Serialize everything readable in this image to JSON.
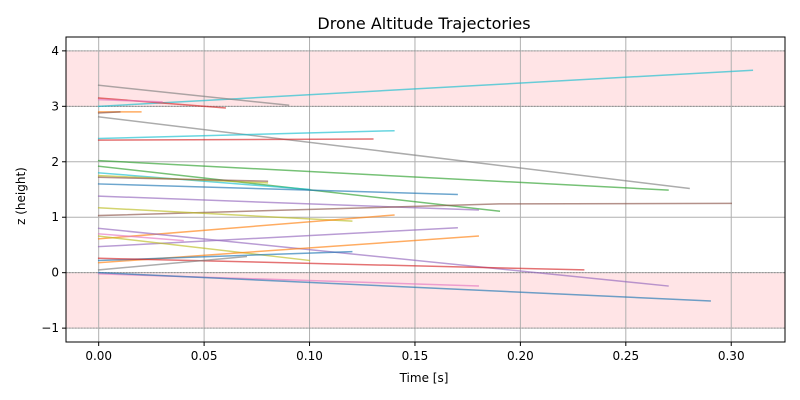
{
  "chart_data": {
    "type": "line",
    "title": "Drone Altitude Trajectories",
    "xlabel": "Time [s]",
    "ylabel": "z (height)",
    "xlim": [
      -0.0155,
      0.3255
    ],
    "ylim": [
      -1.25,
      4.25
    ],
    "x_ticks": [
      0.0,
      0.05,
      0.1,
      0.15,
      0.2,
      0.25,
      0.3
    ],
    "x_tick_labels": [
      "0.00",
      "0.05",
      "0.10",
      "0.15",
      "0.20",
      "0.25",
      "0.30"
    ],
    "y_ticks": [
      -1,
      0,
      1,
      2,
      3,
      4
    ],
    "y_tick_labels": [
      "−1",
      "0",
      "1",
      "2",
      "3",
      "4"
    ],
    "grid": true,
    "legend": "none",
    "shaded_bands": [
      {
        "y_from": 3,
        "y_to": 4,
        "color": "#ffe4e6"
      },
      {
        "y_from": -1,
        "y_to": 0,
        "color": "#ffe4e6"
      }
    ],
    "band_boundary_lines": [
      -1,
      0,
      3,
      4
    ],
    "series": [
      {
        "color": "#17becf",
        "points": [
          [
            0.0,
            3.0
          ],
          [
            0.31,
            3.65
          ]
        ]
      },
      {
        "color": "#7f7f7f",
        "points": [
          [
            0.0,
            3.38
          ],
          [
            0.09,
            3.02
          ]
        ]
      },
      {
        "color": "#d62728",
        "points": [
          [
            0.0,
            3.15
          ],
          [
            0.06,
            2.97
          ]
        ]
      },
      {
        "color": "#e377c2",
        "points": [
          [
            0.0,
            3.12
          ],
          [
            0.03,
            3.08
          ]
        ]
      },
      {
        "color": "#ff7f0e",
        "points": [
          [
            0.0,
            2.9
          ],
          [
            0.02,
            2.9
          ]
        ]
      },
      {
        "color": "#8c564b",
        "points": [
          [
            0.0,
            2.88
          ],
          [
            0.01,
            2.9
          ]
        ]
      },
      {
        "color": "#7f7f7f",
        "points": [
          [
            0.0,
            2.81
          ],
          [
            0.28,
            1.52
          ]
        ]
      },
      {
        "color": "#17becf",
        "points": [
          [
            0.0,
            2.42
          ],
          [
            0.14,
            2.56
          ]
        ]
      },
      {
        "color": "#d62728",
        "points": [
          [
            0.0,
            2.39
          ],
          [
            0.13,
            2.41
          ]
        ]
      },
      {
        "color": "#2ca02c",
        "points": [
          [
            0.0,
            2.02
          ],
          [
            0.27,
            1.49
          ]
        ]
      },
      {
        "color": "#2ca02c",
        "points": [
          [
            0.0,
            1.92
          ],
          [
            0.19,
            1.11
          ]
        ]
      },
      {
        "color": "#17becf",
        "points": [
          [
            0.0,
            1.8
          ],
          [
            0.1,
            1.5
          ]
        ]
      },
      {
        "color": "#bcbd22",
        "points": [
          [
            0.0,
            1.75
          ],
          [
            0.08,
            1.62
          ]
        ]
      },
      {
        "color": "#8c564b",
        "points": [
          [
            0.0,
            1.72
          ],
          [
            0.08,
            1.65
          ]
        ]
      },
      {
        "color": "#1f77b4",
        "points": [
          [
            0.0,
            1.6
          ],
          [
            0.17,
            1.41
          ]
        ]
      },
      {
        "color": "#9467bd",
        "points": [
          [
            0.0,
            1.38
          ],
          [
            0.18,
            1.13
          ]
        ]
      },
      {
        "color": "#8c564b",
        "points": [
          [
            0.0,
            1.03
          ],
          [
            0.19,
            1.24
          ],
          [
            0.3,
            1.25
          ]
        ]
      },
      {
        "color": "#bcbd22",
        "points": [
          [
            0.0,
            1.17
          ],
          [
            0.12,
            0.93
          ]
        ]
      },
      {
        "color": "#ff7f0e",
        "points": [
          [
            0.0,
            0.61
          ],
          [
            0.14,
            1.04
          ]
        ]
      },
      {
        "color": "#9467bd",
        "points": [
          [
            0.0,
            0.8
          ],
          [
            0.27,
            -0.24
          ]
        ]
      },
      {
        "color": "#9467bd",
        "points": [
          [
            0.0,
            0.47
          ],
          [
            0.17,
            0.81
          ]
        ]
      },
      {
        "color": "#e377c2",
        "points": [
          [
            0.0,
            0.7
          ],
          [
            0.04,
            0.58
          ]
        ]
      },
      {
        "color": "#bcbd22",
        "points": [
          [
            0.0,
            0.66
          ],
          [
            0.1,
            0.22
          ]
        ]
      },
      {
        "color": "#ff7f0e",
        "points": [
          [
            0.0,
            0.18
          ],
          [
            0.18,
            0.66
          ]
        ]
      },
      {
        "color": "#1f77b4",
        "points": [
          [
            0.0,
            0.22
          ],
          [
            0.12,
            0.38
          ]
        ]
      },
      {
        "color": "#d62728",
        "points": [
          [
            0.0,
            0.26
          ],
          [
            0.23,
            0.05
          ]
        ]
      },
      {
        "color": "#7f7f7f",
        "points": [
          [
            0.0,
            0.05
          ],
          [
            0.07,
            0.29
          ]
        ]
      },
      {
        "color": "#e377c2",
        "points": [
          [
            0.0,
            -0.02
          ],
          [
            0.18,
            -0.24
          ]
        ]
      },
      {
        "color": "#1f77b4",
        "points": [
          [
            0.0,
            0.0
          ],
          [
            0.29,
            -0.51
          ]
        ]
      }
    ]
  }
}
